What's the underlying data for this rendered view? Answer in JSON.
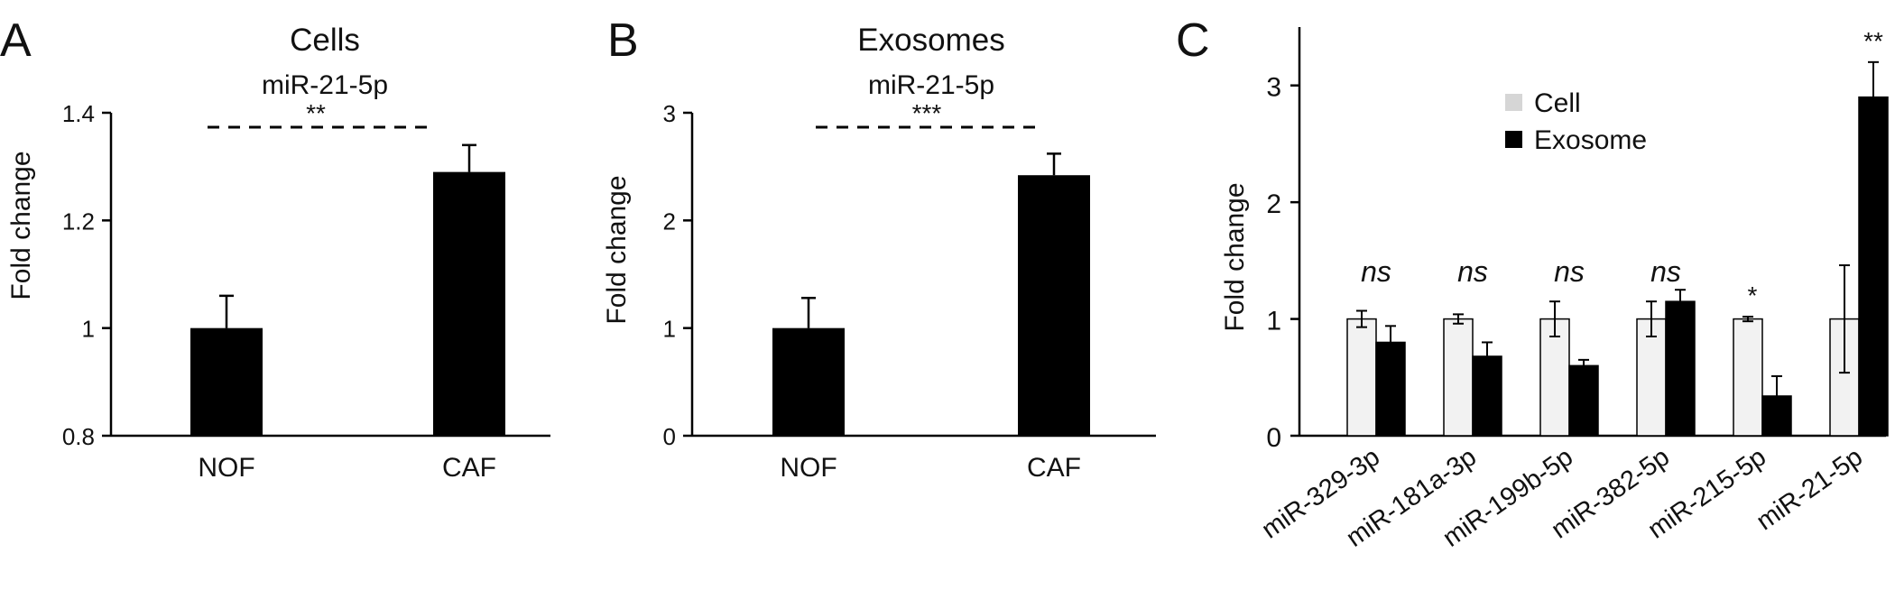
{
  "panels": {
    "A": {
      "letter": "A",
      "title": "Cells",
      "subtitle": "miR-21-5p",
      "ylabel": "Fold change",
      "sig": "**"
    },
    "B": {
      "letter": "B",
      "title": "Exosomes",
      "subtitle": "miR-21-5p",
      "ylabel": "Fold change",
      "sig": "***"
    },
    "C": {
      "letter": "C",
      "ylabel": "Fold change"
    }
  },
  "chart_data": [
    {
      "panel": "A",
      "type": "bar",
      "title": "Cells",
      "subtitle": "miR-21-5p",
      "ylabel": "Fold change",
      "xlabel": "",
      "categories": [
        "NOF",
        "CAF"
      ],
      "values": [
        1.0,
        1.29
      ],
      "errors": [
        0.06,
        0.05
      ],
      "ylim": [
        0.8,
        1.4
      ],
      "yticks": [
        0.8,
        1,
        1.2,
        1.4
      ],
      "ytick_labels": [
        "0.8",
        "1",
        "1.2",
        "1.4"
      ],
      "significance": "**",
      "bar_color": "#000000"
    },
    {
      "panel": "B",
      "type": "bar",
      "title": "Exosomes",
      "subtitle": "miR-21-5p",
      "ylabel": "Fold change",
      "xlabel": "",
      "categories": [
        "NOF",
        "CAF"
      ],
      "values": [
        1.0,
        2.42
      ],
      "errors": [
        0.28,
        0.2
      ],
      "ylim": [
        0,
        3
      ],
      "yticks": [
        0,
        1,
        2,
        3
      ],
      "ytick_labels": [
        "0",
        "1",
        "2",
        "3"
      ],
      "significance": "***",
      "bar_color": "#000000"
    },
    {
      "panel": "C",
      "type": "bar",
      "ylabel": "Fold change",
      "xlabel": "",
      "categories": [
        "miR-329-3p",
        "miR-181a-3p",
        "miR-199b-5p",
        "miR-382-5p",
        "miR-215-5p",
        "miR-21-5p"
      ],
      "series": [
        {
          "name": "Cell",
          "color": "#f2f2f2",
          "values": [
            1.0,
            1.0,
            1.0,
            1.0,
            1.0,
            1.0
          ],
          "errors": [
            0.07,
            0.04,
            0.15,
            0.15,
            0.02,
            0.46
          ]
        },
        {
          "name": "Exosome",
          "color": "#000000",
          "values": [
            0.8,
            0.68,
            0.6,
            1.15,
            0.34,
            2.9
          ],
          "errors": [
            0.14,
            0.12,
            0.05,
            0.1,
            0.17,
            0.3
          ]
        }
      ],
      "significance": [
        "ns",
        "ns",
        "ns",
        "ns",
        "*",
        "**"
      ],
      "ylim": [
        0,
        3.5
      ],
      "yticks": [
        0,
        1,
        2,
        3
      ],
      "ytick_labels": [
        "0",
        "1",
        "2",
        "3"
      ],
      "legend_position": "top-center"
    }
  ]
}
